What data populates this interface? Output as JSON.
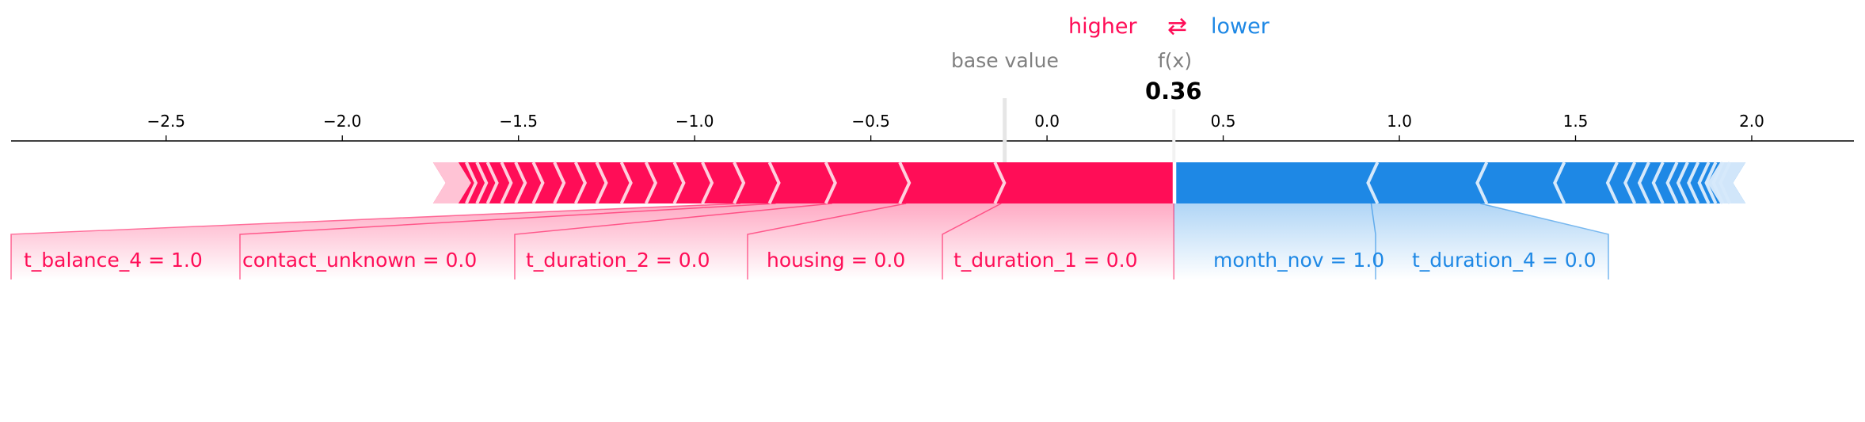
{
  "legend": {
    "higher": "higher",
    "arrows": "⇄",
    "lower": "lower"
  },
  "header": {
    "base_value_label": "base value",
    "fx_label": "f(x)",
    "fx_value": "0.36"
  },
  "colors": {
    "positive": "#ff0d57",
    "negative": "#1e88e5",
    "positive_light": "#ffc3d5",
    "negative_light": "#d1e6fa",
    "axis": "#000000",
    "muted": "#808080"
  },
  "chart_data": {
    "type": "force",
    "xlim": [
      -2.94,
      2.29
    ],
    "ticks": [
      -2.5,
      -2.0,
      -1.5,
      -1.0,
      -0.5,
      0.0,
      0.5,
      1.0,
      1.5,
      2.0
    ],
    "tick_labels": [
      "−2.5",
      "−2.0",
      "−1.5",
      "−1.0",
      "−0.5",
      "0.0",
      "0.5",
      "1.0",
      "1.5",
      "2.0"
    ],
    "base_value": -0.12,
    "output_value": 0.36,
    "positive_extent": [
      -1.72,
      0.36
    ],
    "negative_extent": [
      0.36,
      1.96
    ],
    "positive_boundaries": [
      -1.63,
      -1.6,
      -1.57,
      -1.53,
      -1.49,
      -1.44,
      -1.38,
      -1.32,
      -1.26,
      -1.19,
      -1.12,
      -1.04,
      -0.96,
      -0.87,
      -0.77,
      -0.61,
      -0.4,
      -0.13
    ],
    "negative_boundaries": [
      0.92,
      1.23,
      1.45,
      1.6,
      1.65,
      1.69,
      1.73,
      1.77,
      1.8,
      1.83,
      1.86,
      1.88,
      1.9,
      1.92
    ],
    "positive_features": [
      {
        "label": "t_duration_1 = 0.0",
        "from": -0.13,
        "to": 0.36
      },
      {
        "label": "housing = 0.0",
        "from": -0.4,
        "to": -0.13
      },
      {
        "label": "t_duration_2 = 0.0",
        "from": -0.61,
        "to": -0.4
      },
      {
        "label": "contact_unknown = 0.0",
        "from": -0.77,
        "to": -0.61
      },
      {
        "label": "t_balance_4 = 1.0",
        "from": -0.87,
        "to": -0.77
      }
    ],
    "negative_features": [
      {
        "label": "month_nov = 1.0",
        "from": 0.36,
        "to": 0.92
      },
      {
        "label": "t_duration_4 = 0.0",
        "from": 0.92,
        "to": 1.23
      }
    ]
  }
}
